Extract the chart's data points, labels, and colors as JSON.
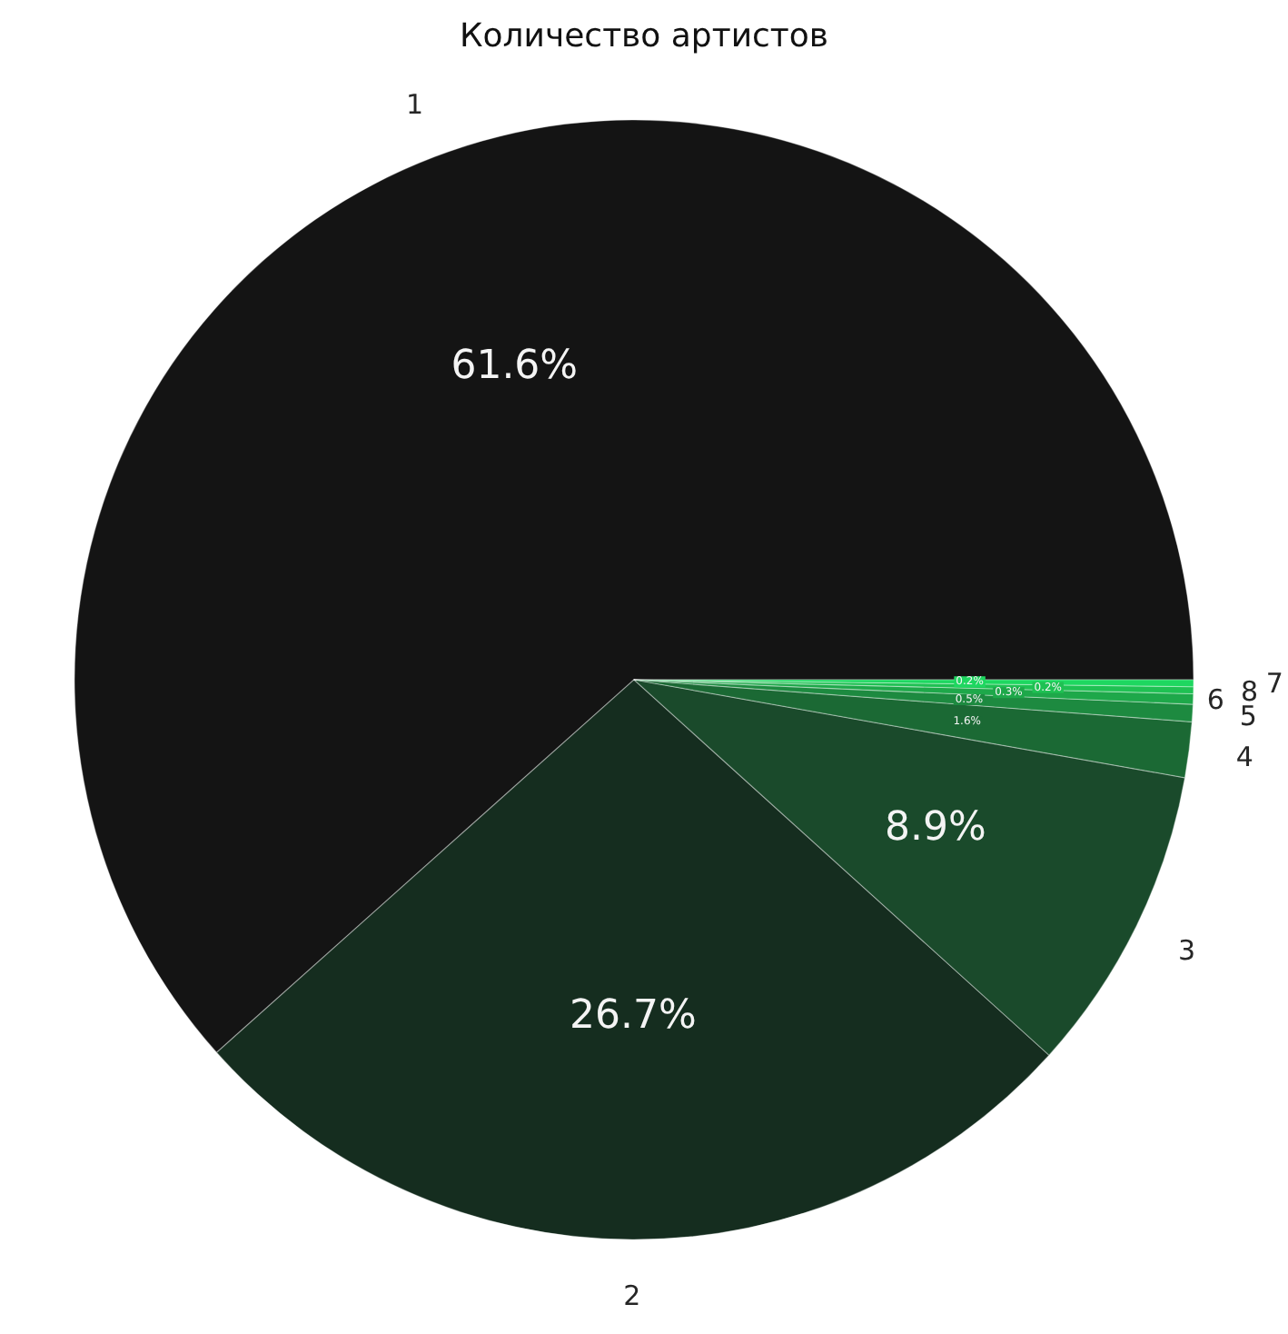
{
  "chart_data": {
    "type": "pie",
    "title": "Количество артистов",
    "categories": [
      "1",
      "2",
      "3",
      "4",
      "5",
      "6",
      "8",
      "7"
    ],
    "values": [
      61.6,
      26.7,
      8.9,
      1.6,
      0.5,
      0.3,
      0.2,
      0.2
    ],
    "colors": [
      "#141414",
      "#152d1f",
      "#1a4a2b",
      "#1b6934",
      "#1d8a40",
      "#1ea84a",
      "#1fc153",
      "#1ed760"
    ],
    "value_labels": [
      "61.6%",
      "26.7%",
      "8.9%",
      "1.6%",
      "0.5%",
      "0.3%",
      "0.2%",
      "0.2%"
    ]
  }
}
